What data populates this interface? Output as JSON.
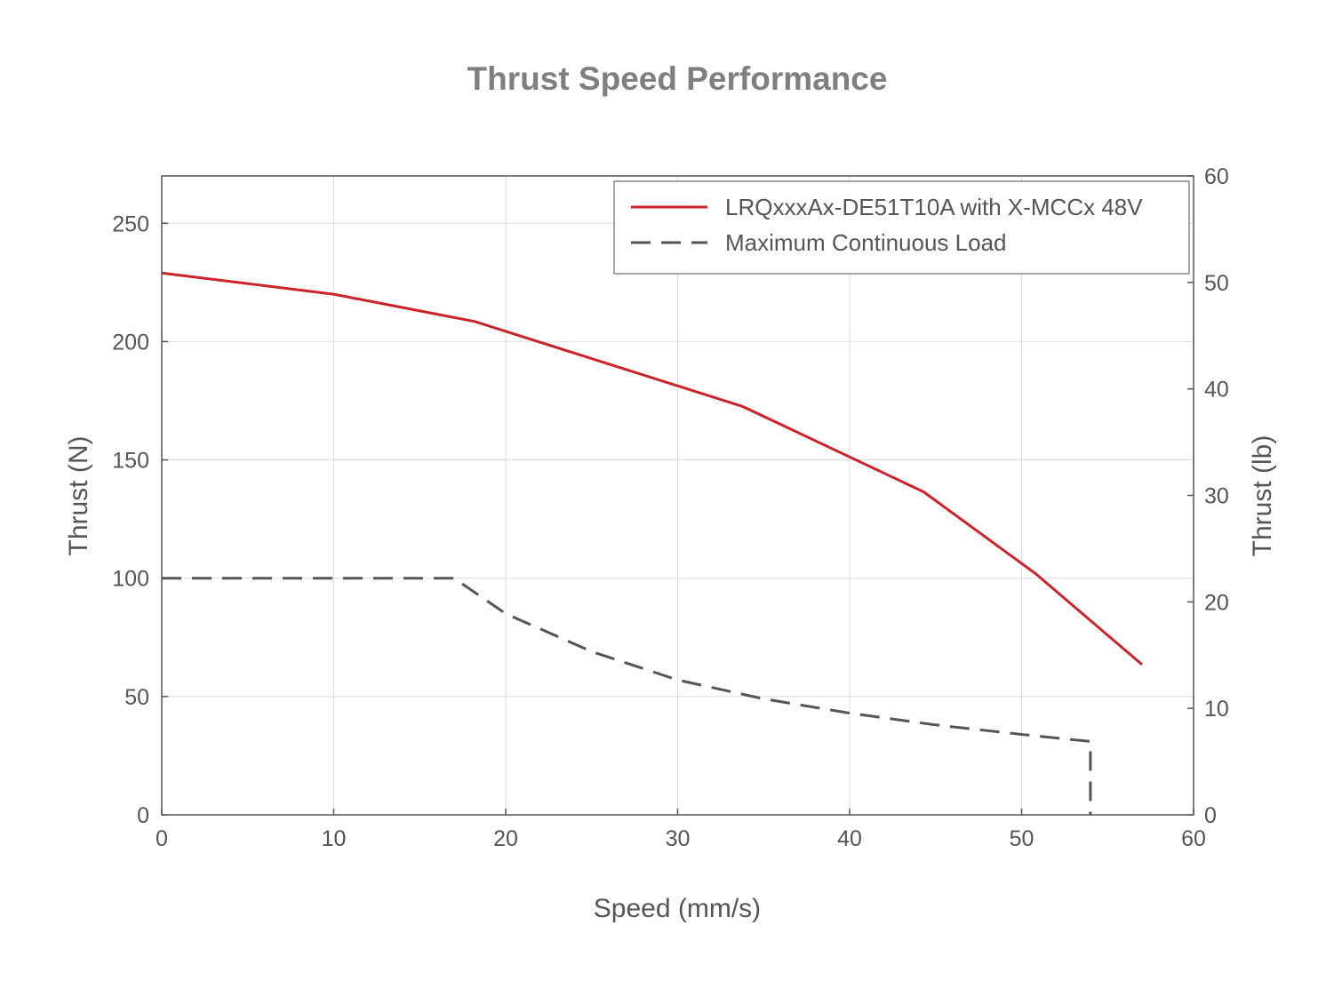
{
  "chart_data": {
    "type": "line",
    "title": "Thrust Speed Performance",
    "xlabel": "Speed (mm/s)",
    "ylabel": "Thrust (N)",
    "y2label": "Thrust (lb)",
    "xlim": [
      0,
      60
    ],
    "ylim": [
      0,
      270
    ],
    "y2lim": [
      0,
      60
    ],
    "xticks": [
      "0",
      "10",
      "20",
      "30",
      "40",
      "50",
      "60"
    ],
    "yticks": [
      "0",
      "50",
      "100",
      "150",
      "200",
      "250"
    ],
    "y2ticks": [
      "0",
      "10",
      "20",
      "30",
      "40",
      "50",
      "60"
    ],
    "grid": true,
    "legend_position": "top-right",
    "series": [
      {
        "name": "LRQxxxAx-DE51T10A with X-MCCx 48V",
        "color": "#cc2229",
        "style": "solid",
        "x": [
          0,
          10,
          18.2,
          33.8,
          44.3,
          50.8,
          57
        ],
        "y": [
          229,
          220,
          208.5,
          172.5,
          136.5,
          102,
          63.5
        ]
      },
      {
        "name": "Maximum Continuous Load",
        "color": "#555555",
        "style": "dashed",
        "x": [
          0,
          17,
          20,
          25,
          30,
          35,
          40,
          45,
          50,
          54,
          54
        ],
        "y": [
          100,
          100,
          85,
          69,
          57,
          49,
          43,
          38,
          34,
          31,
          0
        ]
      }
    ]
  }
}
